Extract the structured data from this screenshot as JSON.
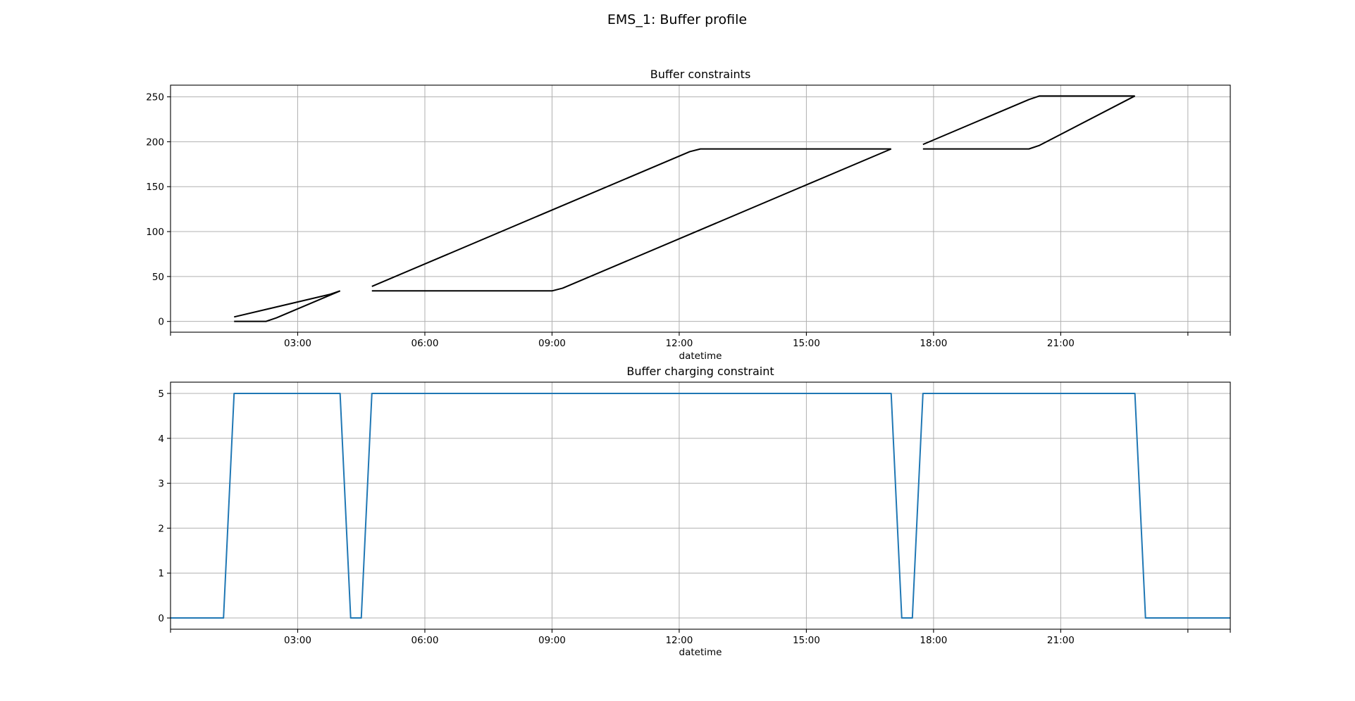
{
  "figure": {
    "title": "EMS_1: Buffer profile"
  },
  "chart_data": [
    {
      "type": "line",
      "title": "Buffer constraints",
      "xlabel": "datetime",
      "ylabel": "",
      "x_unit": "hours",
      "xlim": [
        0,
        25
      ],
      "ylim": [
        -12,
        263
      ],
      "grid": true,
      "yticks": [
        0,
        50,
        100,
        150,
        200,
        250
      ],
      "ytick_labels": [
        "0",
        "50",
        "100",
        "150",
        "200",
        "250"
      ],
      "xticks": [
        3,
        6,
        9,
        12,
        15,
        18,
        21,
        24,
        25
      ],
      "xtick_labels": [
        "03:00",
        "06:00",
        "09:00",
        "12:00",
        "15:00",
        "18:00",
        "21:00",
        "",
        ""
      ],
      "series": [
        {
          "color": "#000000",
          "x": [
            1.5,
            2.25,
            2.5,
            4.0
          ],
          "y": [
            0,
            0,
            4,
            34
          ]
        },
        {
          "color": "#000000",
          "x": [
            1.5,
            3.75,
            4.0
          ],
          "y": [
            5,
            30,
            34
          ]
        },
        {
          "color": "#000000",
          "x": [
            4.75,
            9.0,
            9.25,
            17.0
          ],
          "y": [
            34,
            34,
            37,
            192
          ]
        },
        {
          "color": "#000000",
          "x": [
            4.75,
            12.25,
            12.5,
            17.0
          ],
          "y": [
            39,
            189,
            192,
            192
          ]
        },
        {
          "color": "#000000",
          "x": [
            17.75,
            20.25,
            20.5,
            22.75
          ],
          "y": [
            192,
            192,
            196,
            251
          ]
        },
        {
          "color": "#000000",
          "x": [
            17.75,
            20.25,
            20.5,
            22.75
          ],
          "y": [
            197,
            247,
            251,
            251
          ]
        }
      ]
    },
    {
      "type": "line",
      "title": "Buffer charging constraint",
      "xlabel": "datetime",
      "ylabel": "",
      "x_unit": "hours",
      "xlim": [
        0,
        25
      ],
      "ylim": [
        -0.25,
        5.25
      ],
      "grid": true,
      "yticks": [
        0,
        1,
        2,
        3,
        4,
        5
      ],
      "ytick_labels": [
        "0",
        "1",
        "2",
        "3",
        "4",
        "5"
      ],
      "xticks": [
        3,
        6,
        9,
        12,
        15,
        18,
        21,
        24,
        25
      ],
      "xtick_labels": [
        "03:00",
        "06:00",
        "09:00",
        "12:00",
        "15:00",
        "18:00",
        "21:00",
        "",
        ""
      ],
      "series": [
        {
          "color": "#1f77b4",
          "x": [
            0,
            1.25,
            1.5,
            4.0,
            4.25,
            4.5,
            4.75,
            17.0,
            17.25,
            17.5,
            17.75,
            22.75,
            23.0,
            25.0
          ],
          "y": [
            0,
            0,
            5,
            5,
            0,
            0,
            5,
            5,
            0,
            0,
            5,
            5,
            0,
            0
          ]
        }
      ]
    }
  ]
}
